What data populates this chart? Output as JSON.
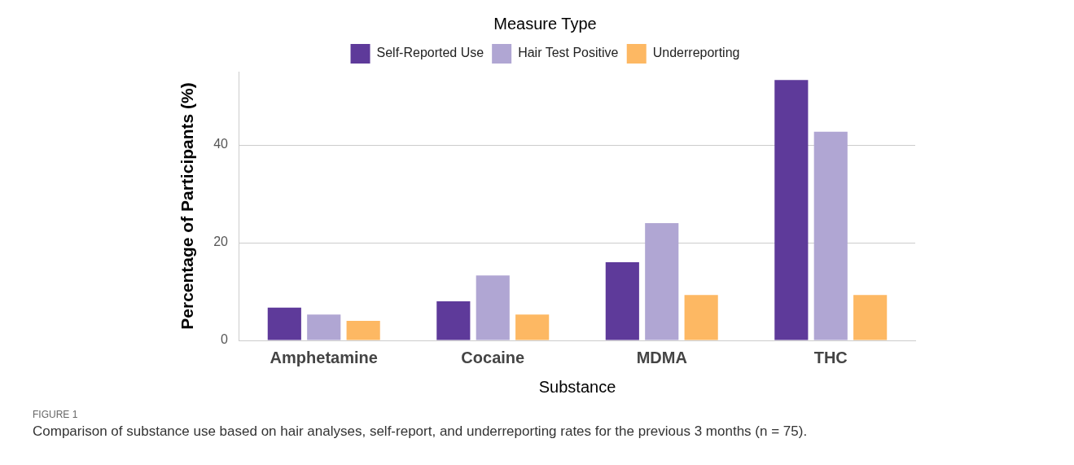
{
  "chart_data": {
    "type": "bar",
    "xlabel": "Substance",
    "ylabel": "Percentage of Participants (%)",
    "legend_title": "Measure Type",
    "categories": [
      "Amphetamine",
      "Cocaine",
      "MDMA",
      "THC"
    ],
    "series": [
      {
        "name": "Self-Reported Use",
        "color": "#5e3a9a",
        "values": [
          6.7,
          8.0,
          16.0,
          53.3
        ]
      },
      {
        "name": "Hair Test Positive",
        "color": "#b0a6d3",
        "values": [
          5.3,
          13.3,
          24.0,
          42.7
        ]
      },
      {
        "name": "Underreporting",
        "color": "#fdb863",
        "values": [
          4.0,
          5.3,
          9.3,
          9.3
        ]
      }
    ],
    "ylim": [
      0,
      55
    ],
    "yticks": [
      0,
      20,
      40
    ],
    "grid": "y",
    "legend": "top",
    "annotations": [
      "FIGURE 1",
      "Comparison of substance use based on hair analyses, self-report, and underreporting rates for the previous 3 months (n = 75)."
    ]
  }
}
